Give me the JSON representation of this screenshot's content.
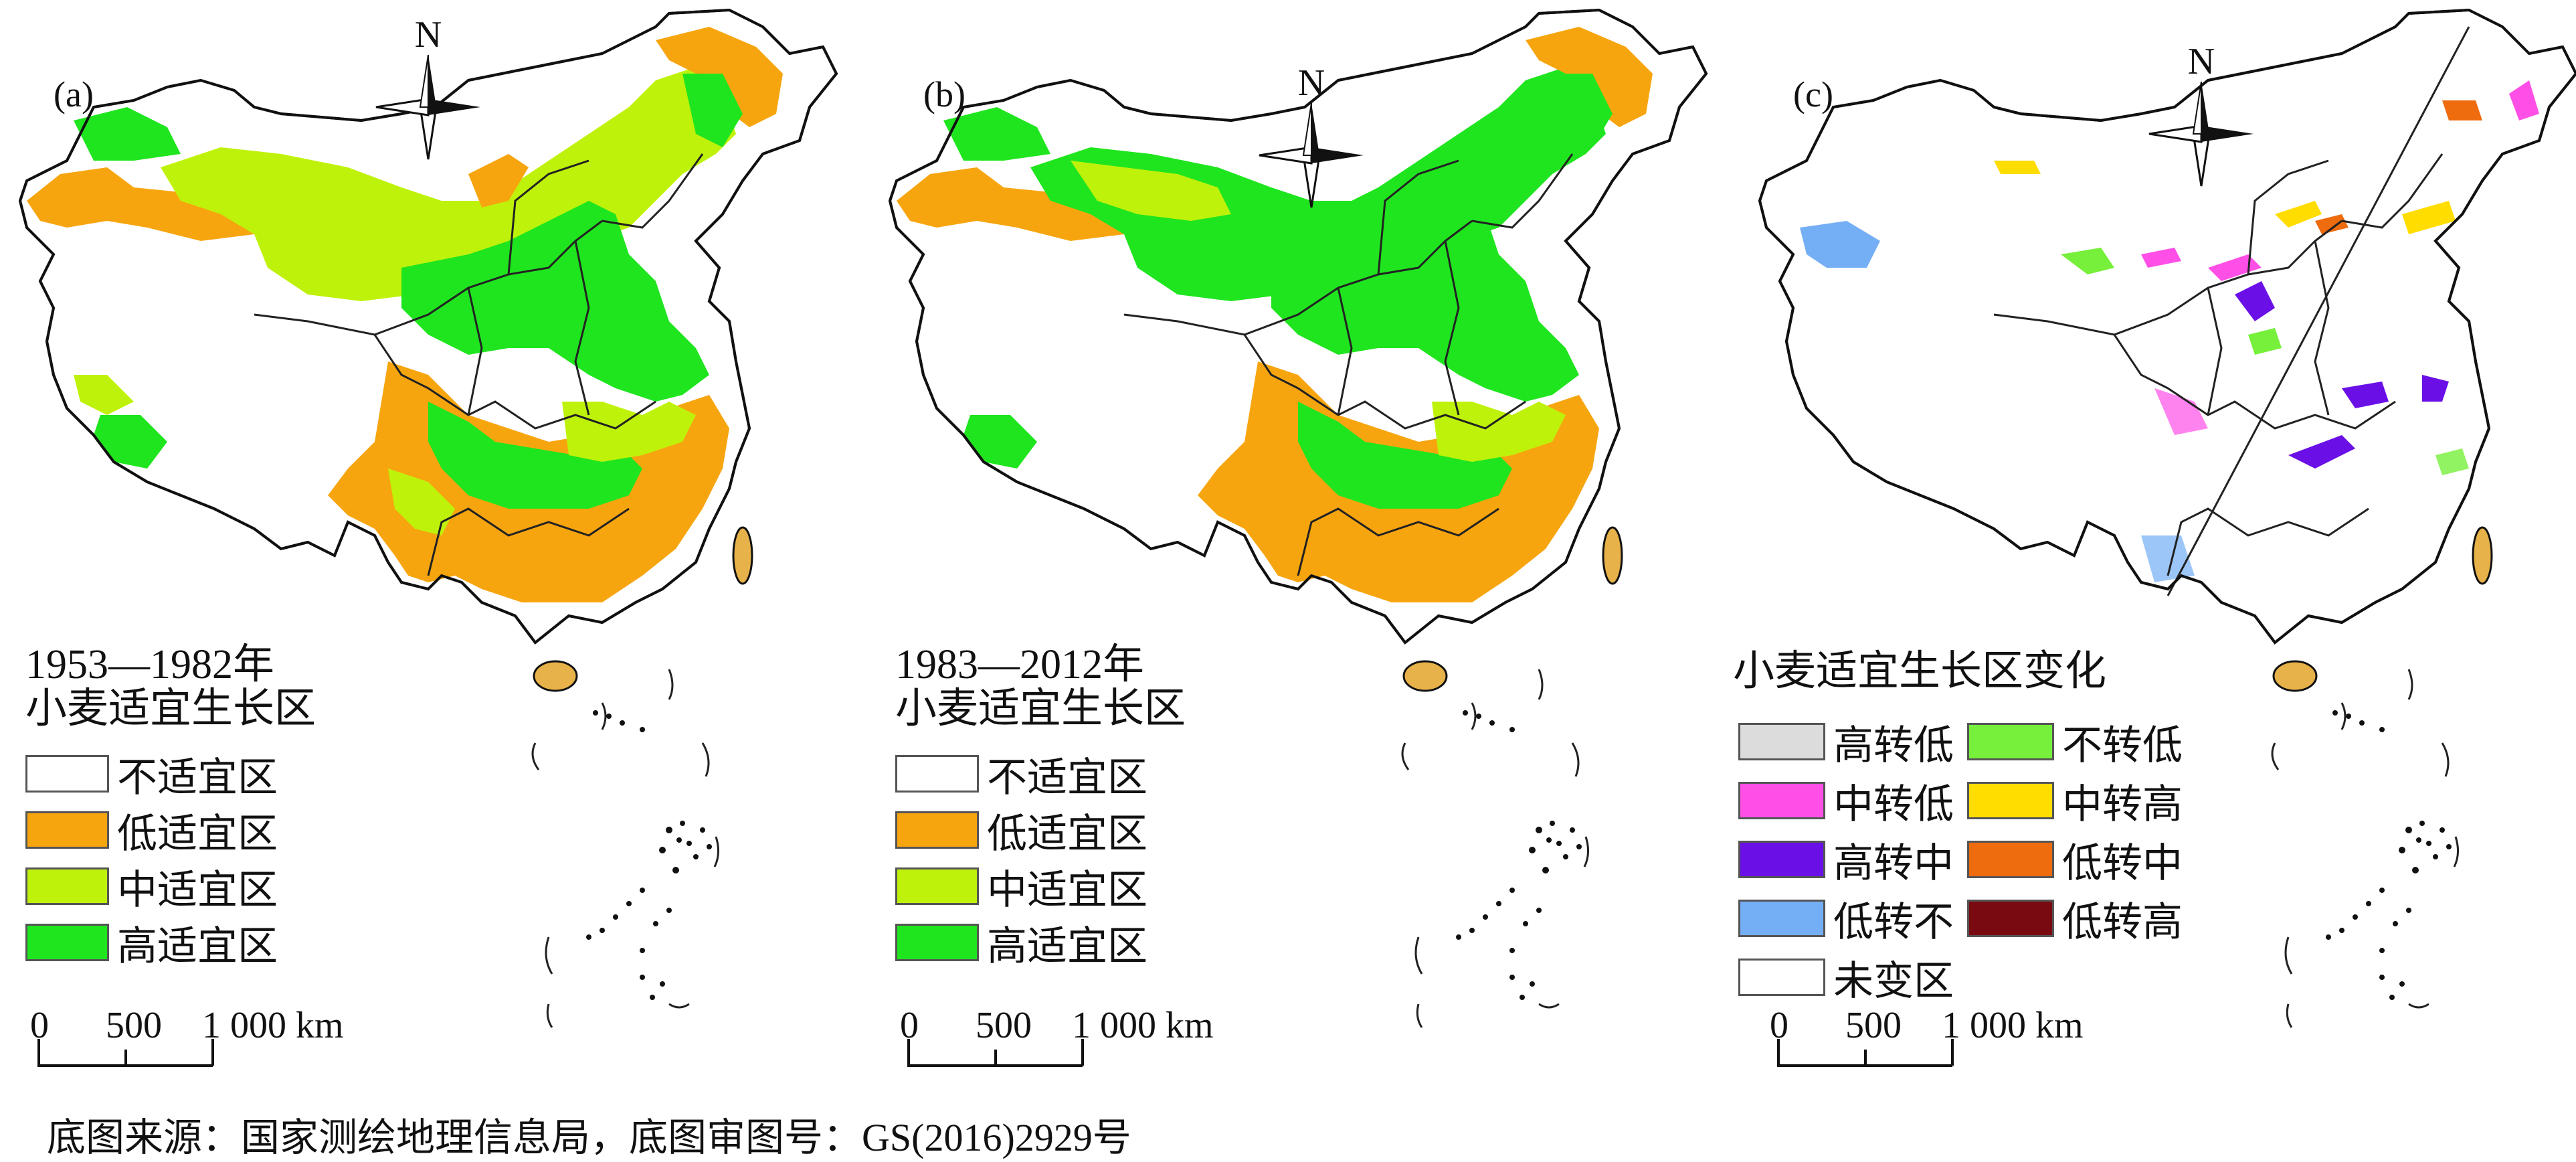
{
  "panels": [
    {
      "label": "(a)",
      "legend_title_line1": "1953—1982年",
      "legend_title_line2": "小麦适宜生长区"
    },
    {
      "label": "(b)",
      "legend_title_line1": "1983—2012年",
      "legend_title_line2": "小麦适宜生长区"
    },
    {
      "label": "(c)",
      "legend_title": "小麦适宜生长区变化"
    }
  ],
  "north_label": "N",
  "suitability_legend": [
    {
      "label": "不适宜区",
      "color": "#ffffff"
    },
    {
      "label": "低适宜区",
      "color": "#f7a50f"
    },
    {
      "label": "中适宜区",
      "color": "#bff20a"
    },
    {
      "label": "高适宜区",
      "color": "#1fe51f"
    }
  ],
  "change_legend": [
    {
      "label": "高转低",
      "color": "#dcdcdc"
    },
    {
      "label": "不转低",
      "color": "#76f03a"
    },
    {
      "label": "中转低",
      "color": "#ff4fe7"
    },
    {
      "label": "中转高",
      "color": "#ffdd00"
    },
    {
      "label": "高转中",
      "color": "#6a0fe6"
    },
    {
      "label": "低转中",
      "color": "#ee6b0e"
    },
    {
      "label": "低转不",
      "color": "#74aef5"
    },
    {
      "label": "低转高",
      "color": "#7a0a12"
    },
    {
      "label": "未变区",
      "color": "#ffffff"
    }
  ],
  "scale": {
    "ticks": [
      "0",
      "500",
      "1 000 km"
    ]
  },
  "footer": "底图来源：国家测绘地理信息局，底图审图号：GS(2016)2929号"
}
